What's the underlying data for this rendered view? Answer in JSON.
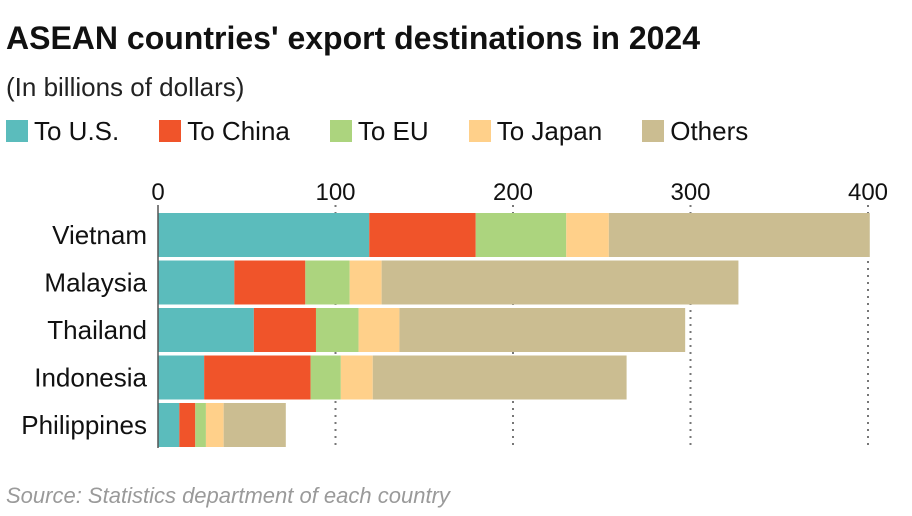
{
  "chart_data": {
    "type": "bar",
    "orientation": "horizontal",
    "stacked": true,
    "title": "ASEAN countries' export destinations in 2024",
    "subtitle": "(In billions of dollars)",
    "source": "Source: Statistics department of each country",
    "categories": [
      "Vietnam",
      "Malaysia",
      "Thailand",
      "Indonesia",
      "Philippines"
    ],
    "series": [
      {
        "name": "To U.S.",
        "color": "#5bbcbc",
        "values": [
          119,
          43,
          54,
          26,
          12
        ]
      },
      {
        "name": "To China",
        "color": "#f0542a",
        "values": [
          60,
          40,
          35,
          60,
          9
        ]
      },
      {
        "name": "To EU",
        "color": "#acd47e",
        "values": [
          51,
          25,
          24,
          17,
          6
        ]
      },
      {
        "name": "To Japan",
        "color": "#ffd08a",
        "values": [
          24,
          18,
          23,
          18,
          10
        ]
      },
      {
        "name": "Others",
        "color": "#cbbd91",
        "values": [
          147,
          201,
          161,
          143,
          35
        ]
      }
    ],
    "xlim": [
      0,
      400
    ],
    "xticks": [
      0,
      100,
      200,
      300,
      400
    ],
    "xaxis_position": "top",
    "grid": "vertical dotted",
    "legend_position": "top"
  }
}
